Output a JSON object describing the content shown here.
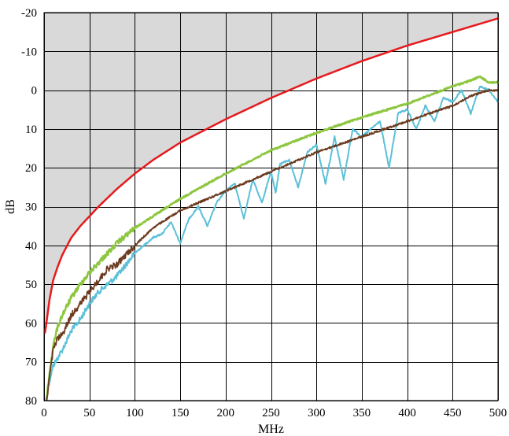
{
  "chart_data": {
    "type": "line",
    "xlabel": "MHz",
    "ylabel": "dB",
    "xlim": [
      0,
      500
    ],
    "ylim": [
      80,
      -20
    ],
    "y_axis_inverted": true,
    "x_ticks": [
      "0",
      "50",
      "100",
      "150",
      "200",
      "250",
      "300",
      "350",
      "400",
      "450",
      "500"
    ],
    "y_ticks": [
      "-20",
      "-10",
      "0",
      "10",
      "20",
      "30",
      "40",
      "50",
      "60",
      "70",
      "80"
    ],
    "grid": true,
    "shaded_region": {
      "description": "area above the red limit line",
      "color": "#d9d9d9"
    },
    "series": [
      {
        "color": "#e8191c",
        "line_width": 2.5,
        "noise": 0,
        "x": [
          1,
          2,
          4,
          6,
          10,
          15,
          20,
          30,
          40,
          50,
          60,
          80,
          100,
          120,
          150,
          175,
          200,
          250,
          300,
          350,
          400,
          450,
          500
        ],
        "y": [
          62.5,
          61,
          57.5,
          54,
          49,
          45.5,
          42.5,
          38,
          35,
          32.5,
          30,
          25.5,
          21.5,
          18,
          13.5,
          10.5,
          7.5,
          2,
          -3,
          -7.5,
          -11.5,
          -15,
          -18.5
        ]
      },
      {
        "color": "#8dc63f",
        "line_width": 2.5,
        "noise": 0.4,
        "x": [
          3,
          6,
          10,
          15,
          20,
          30,
          40,
          50,
          60,
          80,
          100,
          120,
          150,
          200,
          250,
          300,
          350,
          400,
          450,
          470,
          480,
          490,
          500
        ],
        "y": [
          79,
          73,
          66,
          61,
          58,
          53.5,
          50,
          47,
          44.5,
          39.5,
          35.5,
          32.5,
          28,
          21.5,
          15.5,
          11,
          7,
          3.5,
          -1,
          -2.5,
          -3.5,
          -2,
          -2
        ]
      },
      {
        "color": "#6b3a1f",
        "line_width": 1.8,
        "noise": 0.5,
        "x": [
          3,
          6,
          10,
          15,
          20,
          25,
          30,
          40,
          50,
          60,
          70,
          80,
          100,
          120,
          150,
          200,
          250,
          300,
          350,
          400,
          450,
          470,
          490,
          500
        ],
        "y": [
          80,
          74,
          67,
          64,
          63,
          60.5,
          58,
          55,
          52,
          49,
          46,
          45,
          40,
          35.5,
          31,
          26,
          21,
          16,
          12,
          8,
          4,
          1.5,
          0,
          0
        ]
      },
      {
        "color": "#5bc0d8",
        "line_width": 2,
        "noise": 0.45,
        "x": [
          2,
          5,
          10,
          15,
          20,
          30,
          40,
          50,
          60,
          80,
          100,
          120,
          130,
          140,
          150,
          155,
          160,
          170,
          180,
          190,
          200,
          210,
          220,
          225,
          230,
          240,
          250,
          255,
          260,
          270,
          280,
          290,
          300,
          310,
          320,
          330,
          340,
          350,
          360,
          370,
          380,
          390,
          400,
          410,
          420,
          430,
          440,
          450,
          460,
          470,
          480,
          490,
          500
        ],
        "y": [
          80,
          76,
          71,
          69,
          67,
          62,
          59,
          55,
          52,
          48,
          42,
          38,
          37,
          34,
          39.5,
          36,
          33,
          30,
          35,
          29,
          26,
          24,
          33,
          28,
          23,
          29,
          21,
          26.5,
          19,
          18,
          25,
          16,
          14,
          24,
          12,
          23,
          10,
          12,
          10,
          8,
          20,
          6,
          5,
          10,
          4,
          8,
          2,
          3,
          0,
          6,
          -1,
          0,
          3
        ]
      }
    ]
  }
}
